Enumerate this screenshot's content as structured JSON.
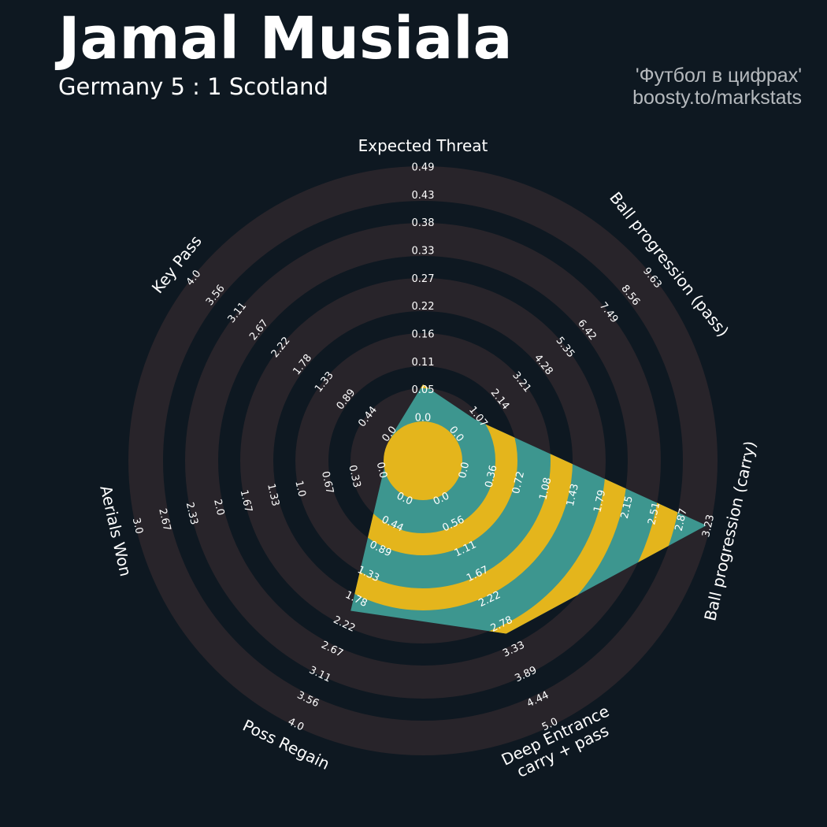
{
  "header": {
    "title": "Jamal Musiala",
    "subtitle": "Germany 5 : 1 Scotland",
    "credit_line1": "'Футбол в цифрах'",
    "credit_line2": "boosty.to/markstats"
  },
  "colors": {
    "background": "#0e1821",
    "ring": "#28242a",
    "polygon_fill": "#3d968f",
    "polygon_ring": "#e4b51c"
  },
  "chart_data": {
    "type": "radar",
    "params": [
      {
        "name": "Expected Threat",
        "value": 0.07,
        "range": [
          "0.0",
          "0.05",
          "0.11",
          "0.16",
          "0.22",
          "0.27",
          "0.33",
          "0.38",
          "0.43",
          "0.49"
        ],
        "max": 0.49
      },
      {
        "name": "Ball progression (pass)",
        "value": 1.0,
        "range": [
          "0.0",
          "1.07",
          "2.14",
          "3.21",
          "4.28",
          "5.35",
          "6.42",
          "7.49",
          "8.56",
          "9.63"
        ],
        "max": 9.63
      },
      {
        "name": "Ball progression (carry)",
        "value": 3.2,
        "range": [
          "0.0",
          "0.36",
          "0.72",
          "1.08",
          "1.43",
          "1.79",
          "2.15",
          "2.51",
          "2.87",
          "3.23"
        ],
        "max": 3.23
      },
      {
        "name": "Deep Entrance\ncarry + pass",
        "value": 3.0,
        "range": [
          "0.0",
          "0.56",
          "1.11",
          "1.67",
          "2.22",
          "2.78",
          "3.33",
          "3.89",
          "4.44",
          "5.0"
        ],
        "max": 5.0
      },
      {
        "name": "Poss Regain",
        "value": 2.0,
        "range": [
          "0.0",
          "0.44",
          "0.89",
          "1.33",
          "1.78",
          "2.22",
          "2.67",
          "3.11",
          "3.56",
          "4.0"
        ],
        "max": 4.0
      },
      {
        "name": "Aerials Won",
        "value": 0.0,
        "range": [
          "0.0",
          "0.33",
          "0.67",
          "1.0",
          "1.33",
          "1.67",
          "2.0",
          "2.33",
          "2.67",
          "3.0"
        ],
        "max": 3.0
      },
      {
        "name": "Key Pass",
        "value": 0.0,
        "range": [
          "0.0",
          "0.44",
          "0.89",
          "1.33",
          "1.78",
          "2.22",
          "2.67",
          "3.11",
          "3.56",
          "4.0"
        ],
        "max": 4.0
      }
    ]
  }
}
